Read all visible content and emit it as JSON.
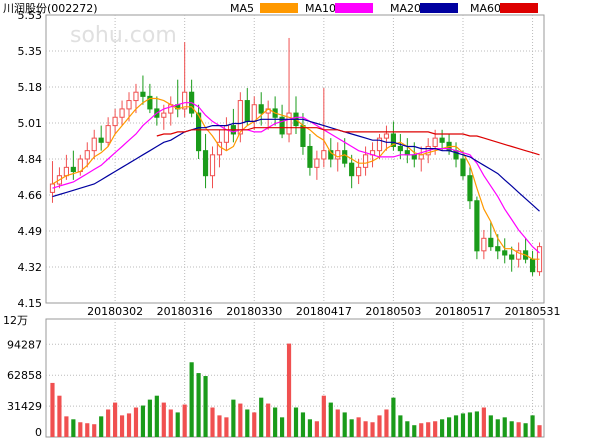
{
  "title": "川润股份(002272)",
  "watermark": "sohu.com",
  "colors": {
    "up": "#f05050",
    "down": "#1a9b1a",
    "ma5": "#ff9900",
    "ma10": "#ff00ff",
    "ma20": "#0000a0",
    "ma60": "#dd0000",
    "grid": "#bbbbbb"
  },
  "legend": [
    {
      "label": "MA5",
      "color": "#ff9900"
    },
    {
      "label": "MA10",
      "color": "#ff00ff"
    },
    {
      "label": "MA20",
      "color": "#0000a0"
    },
    {
      "label": "MA60",
      "color": "#dd0000"
    }
  ],
  "chart_data": [
    {
      "type": "candlestick",
      "title": "川润股份(002272)",
      "ylim": [
        4.15,
        5.53
      ],
      "y_ticks": [
        "5.53",
        "5.35",
        "5.18",
        "5.01",
        "4.84",
        "4.66",
        "4.49",
        "4.32",
        "4.15"
      ],
      "x_tick_labels": [
        {
          "label": "20180302",
          "index": 9
        },
        {
          "label": "20180316",
          "index": 19
        },
        {
          "label": "20180330",
          "index": 29
        },
        {
          "label": "20180417",
          "index": 39
        },
        {
          "label": "20180503",
          "index": 49
        },
        {
          "label": "20180517",
          "index": 59
        },
        {
          "label": "20180531",
          "index": 69
        }
      ],
      "ohlc": [
        [
          4.68,
          4.83,
          4.63,
          4.72
        ],
        [
          4.72,
          4.8,
          4.7,
          4.76
        ],
        [
          4.76,
          4.86,
          4.74,
          4.8
        ],
        [
          4.8,
          4.88,
          4.74,
          4.78
        ],
        [
          4.78,
          4.86,
          4.76,
          4.84
        ],
        [
          4.84,
          4.92,
          4.8,
          4.88
        ],
        [
          4.88,
          4.98,
          4.84,
          4.94
        ],
        [
          4.94,
          5.0,
          4.88,
          4.92
        ],
        [
          4.92,
          5.04,
          4.9,
          5.0
        ],
        [
          5.0,
          5.08,
          4.96,
          5.04
        ],
        [
          5.04,
          5.12,
          5.0,
          5.08
        ],
        [
          5.08,
          5.16,
          5.02,
          5.12
        ],
        [
          5.12,
          5.2,
          5.06,
          5.16
        ],
        [
          5.16,
          5.24,
          5.1,
          5.14
        ],
        [
          5.14,
          5.2,
          5.06,
          5.08
        ],
        [
          5.08,
          5.14,
          5.0,
          5.04
        ],
        [
          5.04,
          5.1,
          4.98,
          5.06
        ],
        [
          5.06,
          5.14,
          5.0,
          5.1
        ],
        [
          5.1,
          5.22,
          5.04,
          5.08
        ],
        [
          5.08,
          5.4,
          5.04,
          5.16
        ],
        [
          5.16,
          5.22,
          5.04,
          5.06
        ],
        [
          5.06,
          5.1,
          4.84,
          4.88
        ],
        [
          4.88,
          4.96,
          4.7,
          4.76
        ],
        [
          4.76,
          4.9,
          4.7,
          4.86
        ],
        [
          4.86,
          4.98,
          4.8,
          4.92
        ],
        [
          4.92,
          5.04,
          4.88,
          5.0
        ],
        [
          5.0,
          5.08,
          4.92,
          4.96
        ],
        [
          4.96,
          5.16,
          4.92,
          5.12
        ],
        [
          5.12,
          5.18,
          5.0,
          5.02
        ],
        [
          5.02,
          5.14,
          4.98,
          5.1
        ],
        [
          5.1,
          5.16,
          5.0,
          5.06
        ],
        [
          5.06,
          5.12,
          4.98,
          5.08
        ],
        [
          5.08,
          5.14,
          5.0,
          5.04
        ],
        [
          5.04,
          5.1,
          4.94,
          4.96
        ],
        [
          4.96,
          5.42,
          4.92,
          5.06
        ],
        [
          5.06,
          5.14,
          4.96,
          5.0
        ],
        [
          5.0,
          5.06,
          4.86,
          4.9
        ],
        [
          4.9,
          4.96,
          4.76,
          4.8
        ],
        [
          4.8,
          4.88,
          4.74,
          4.84
        ],
        [
          4.84,
          5.18,
          4.8,
          4.88
        ],
        [
          4.88,
          4.94,
          4.8,
          4.84
        ],
        [
          4.84,
          4.92,
          4.78,
          4.88
        ],
        [
          4.88,
          4.94,
          4.8,
          4.82
        ],
        [
          4.82,
          4.86,
          4.7,
          4.76
        ],
        [
          4.76,
          4.84,
          4.72,
          4.8
        ],
        [
          4.8,
          4.9,
          4.76,
          4.86
        ],
        [
          4.86,
          4.92,
          4.8,
          4.88
        ],
        [
          4.88,
          4.96,
          4.84,
          4.94
        ],
        [
          4.94,
          5.0,
          4.88,
          4.96
        ],
        [
          4.96,
          5.02,
          4.88,
          4.9
        ],
        [
          4.9,
          4.96,
          4.84,
          4.88
        ],
        [
          4.88,
          4.94,
          4.82,
          4.86
        ],
        [
          4.86,
          4.92,
          4.8,
          4.84
        ],
        [
          4.84,
          4.9,
          4.78,
          4.86
        ],
        [
          4.86,
          4.94,
          4.82,
          4.9
        ],
        [
          4.9,
          4.98,
          4.86,
          4.94
        ],
        [
          4.94,
          4.98,
          4.88,
          4.92
        ],
        [
          4.92,
          4.96,
          4.86,
          4.88
        ],
        [
          4.88,
          4.92,
          4.8,
          4.84
        ],
        [
          4.84,
          4.88,
          4.74,
          4.76
        ],
        [
          4.76,
          4.8,
          4.6,
          4.64
        ],
        [
          4.64,
          4.66,
          4.36,
          4.4
        ],
        [
          4.4,
          4.5,
          4.36,
          4.46
        ],
        [
          4.46,
          4.54,
          4.4,
          4.42
        ],
        [
          4.42,
          4.48,
          4.36,
          4.4
        ],
        [
          4.4,
          4.46,
          4.34,
          4.38
        ],
        [
          4.38,
          4.42,
          4.3,
          4.36
        ],
        [
          4.36,
          4.44,
          4.32,
          4.4
        ],
        [
          4.4,
          4.46,
          4.34,
          4.36
        ],
        [
          4.36,
          4.4,
          4.28,
          4.3
        ],
        [
          4.3,
          4.44,
          4.28,
          4.42
        ]
      ],
      "ma5": [
        4.72,
        4.74,
        4.76,
        4.77,
        4.78,
        4.81,
        4.85,
        4.87,
        4.9,
        4.96,
        5.0,
        5.04,
        5.08,
        5.11,
        5.13,
        5.13,
        5.12,
        5.1,
        5.08,
        5.09,
        5.09,
        5.05,
        4.99,
        4.95,
        4.9,
        4.88,
        4.9,
        4.97,
        5.0,
        5.02,
        5.05,
        5.08,
        5.06,
        5.05,
        5.04,
        5.03,
        5.0,
        4.98,
        4.95,
        4.93,
        4.87,
        4.85,
        4.86,
        4.84,
        4.82,
        4.82,
        4.83,
        4.85,
        4.89,
        4.91,
        4.92,
        4.9,
        4.87,
        4.86,
        4.87,
        4.88,
        4.89,
        4.9,
        4.9,
        4.87,
        4.81,
        4.7,
        4.6,
        4.54,
        4.46,
        4.41,
        4.41,
        4.39,
        4.38,
        4.36,
        4.36
      ],
      "ma10": [
        4.7,
        4.71,
        4.72,
        4.73,
        4.75,
        4.77,
        4.79,
        4.81,
        4.84,
        4.87,
        4.9,
        4.93,
        4.96,
        5.0,
        5.03,
        5.06,
        5.08,
        5.09,
        5.1,
        5.11,
        5.11,
        5.09,
        5.05,
        5.02,
        5.0,
        4.98,
        4.97,
        4.98,
        4.98,
        4.97,
        4.97,
        4.99,
        5.01,
        5.02,
        5.03,
        5.04,
        5.04,
        5.02,
        5.0,
        4.98,
        4.96,
        4.94,
        4.92,
        4.9,
        4.88,
        4.87,
        4.86,
        4.85,
        4.85,
        4.85,
        4.86,
        4.86,
        4.86,
        4.87,
        4.88,
        4.89,
        4.89,
        4.89,
        4.88,
        4.87,
        4.86,
        4.82,
        4.76,
        4.71,
        4.66,
        4.6,
        4.55,
        4.5,
        4.46,
        4.42,
        4.39
      ],
      "ma20": [
        4.66,
        4.67,
        4.68,
        4.69,
        4.7,
        4.71,
        4.72,
        4.74,
        4.76,
        4.78,
        4.8,
        4.82,
        4.84,
        4.86,
        4.88,
        4.9,
        4.92,
        4.93,
        4.95,
        4.97,
        4.98,
        4.99,
        4.99,
        5.0,
        5.0,
        5.0,
        5.01,
        5.01,
        5.02,
        5.02,
        5.03,
        5.03,
        5.03,
        5.03,
        5.03,
        5.03,
        5.03,
        5.02,
        5.01,
        5.0,
        4.99,
        4.98,
        4.97,
        4.96,
        4.95,
        4.94,
        4.93,
        4.93,
        4.92,
        4.92,
        4.91,
        4.9,
        4.9,
        4.89,
        4.89,
        4.89,
        4.88,
        4.88,
        4.87,
        4.86,
        4.85,
        4.83,
        4.81,
        4.79,
        4.77,
        4.74,
        4.71,
        4.68,
        4.65,
        4.62,
        4.59
      ],
      "ma60": [
        null,
        null,
        null,
        null,
        null,
        null,
        null,
        null,
        null,
        null,
        null,
        null,
        null,
        null,
        null,
        4.95,
        4.96,
        4.96,
        4.97,
        4.97,
        4.98,
        4.98,
        4.98,
        4.98,
        4.98,
        4.98,
        4.98,
        4.98,
        4.98,
        4.99,
        4.99,
        4.99,
        4.99,
        4.99,
        4.99,
        4.99,
        4.99,
        4.99,
        4.99,
        4.98,
        4.98,
        4.98,
        4.97,
        4.97,
        4.97,
        4.97,
        4.97,
        4.97,
        4.97,
        4.97,
        4.97,
        4.97,
        4.97,
        4.97,
        4.97,
        4.96,
        4.96,
        4.96,
        4.96,
        4.96,
        4.95,
        4.95,
        4.94,
        4.93,
        4.92,
        4.91,
        4.9,
        4.89,
        4.88,
        4.87,
        4.86
      ]
    },
    {
      "type": "bar",
      "unit_label": "12万",
      "ylim": [
        0,
        120000
      ],
      "y_ticks": [
        "94287",
        "62858",
        "31429",
        "0"
      ],
      "values": [
        55000,
        42000,
        21000,
        18000,
        15000,
        14000,
        13000,
        21000,
        28000,
        35000,
        22000,
        24000,
        30000,
        32000,
        38000,
        42000,
        35000,
        28000,
        25000,
        33000,
        76000,
        65000,
        62000,
        30000,
        22000,
        20000,
        38000,
        34000,
        28000,
        25000,
        40000,
        34000,
        30000,
        20000,
        95000,
        30000,
        25000,
        18000,
        16000,
        42000,
        35000,
        28000,
        25000,
        18000,
        20000,
        16000,
        15000,
        22000,
        28000,
        40000,
        22000,
        16000,
        12000,
        14000,
        15000,
        16000,
        18000,
        20000,
        22000,
        24000,
        25000,
        26000,
        30000,
        22000,
        18000,
        20000,
        16000,
        15000,
        14000,
        22000,
        12000
      ]
    }
  ]
}
